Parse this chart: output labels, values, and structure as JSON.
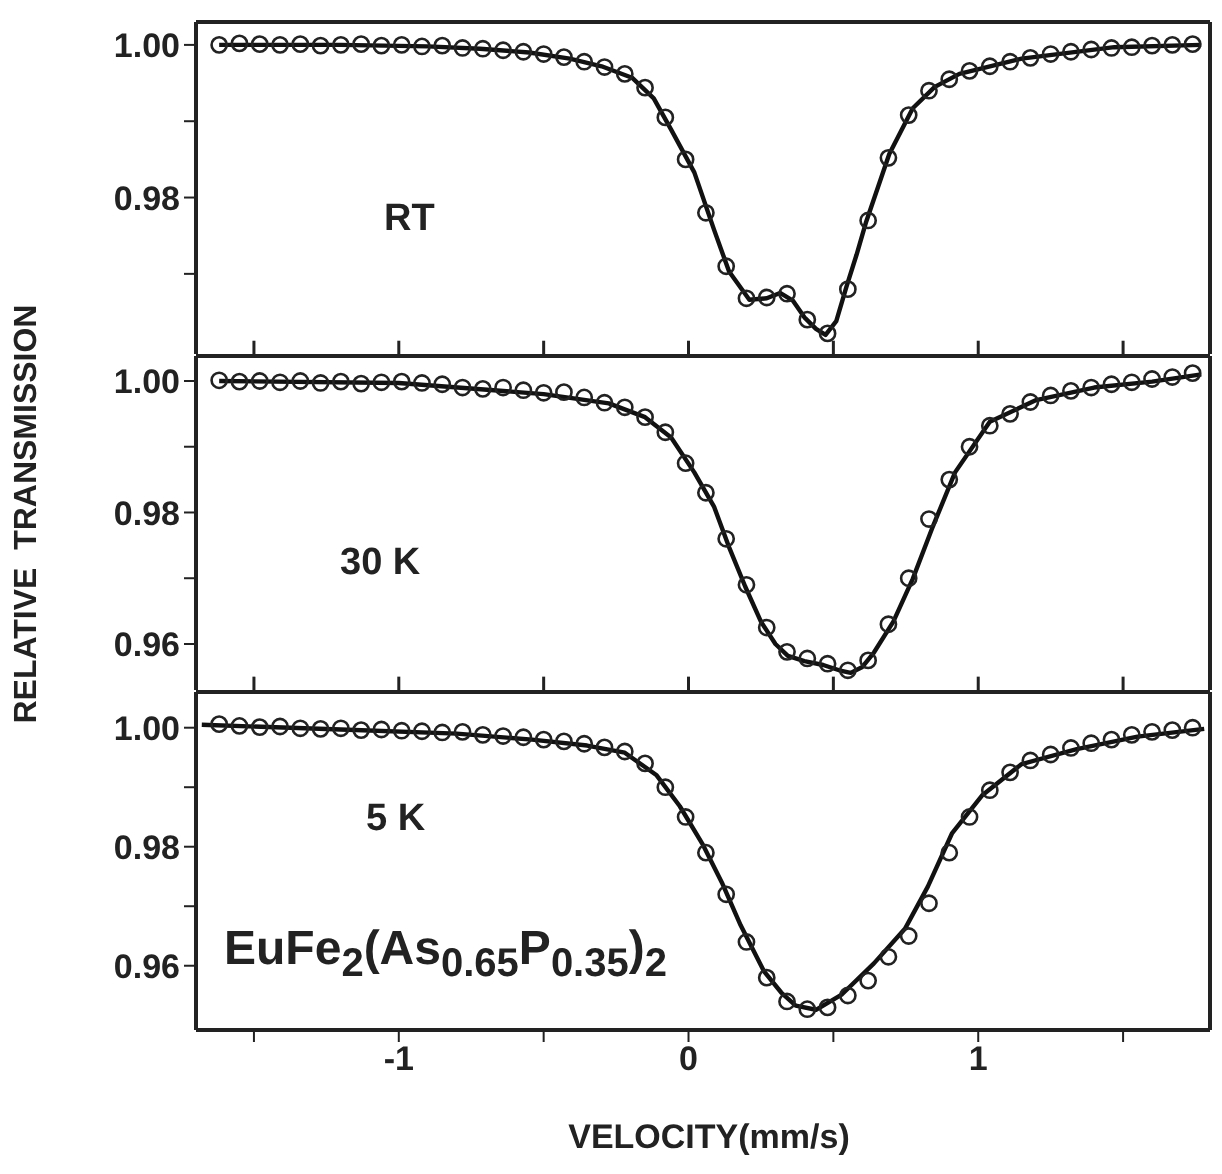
{
  "chart_data": [
    {
      "type": "scatter",
      "xlim": [
        -1.7,
        1.8
      ],
      "xticks": [
        {
          "value": -1.5,
          "label": null
        },
        {
          "value": -1,
          "label": null
        },
        {
          "value": -0.5,
          "label": null
        },
        {
          "value": 0,
          "label": null
        },
        {
          "value": 0.5,
          "label": null
        },
        {
          "value": 1,
          "label": null
        },
        {
          "value": 1.5,
          "label": null
        }
      ],
      "ylim": [
        0.9595,
        1.003
      ],
      "yticks": [
        {
          "value": 0.97,
          "label": null
        },
        {
          "value": 0.98,
          "label": "0.98"
        },
        {
          "value": 0.99,
          "label": null
        },
        {
          "value": 1.0,
          "label": "1.00"
        }
      ],
      "tick_labels": "y",
      "annotations": [
        "RT"
      ],
      "series": [
        {
          "type": "scatter",
          "marker": "circle",
          "color": "#222222",
          "x": [
            -1.62,
            -1.55,
            -1.48,
            -1.41,
            -1.34,
            -1.27,
            -1.2,
            -1.13,
            -1.06,
            -0.99,
            -0.92,
            -0.85,
            -0.78,
            -0.71,
            -0.64,
            -0.57,
            -0.5,
            -0.43,
            -0.36,
            -0.29,
            -0.22,
            -0.15,
            -0.08,
            -0.01,
            0.06,
            0.13,
            0.2,
            0.27,
            0.34,
            0.41,
            0.48,
            0.55,
            0.62,
            0.69,
            0.76,
            0.83,
            0.9,
            0.97,
            1.04,
            1.11,
            1.18,
            1.25,
            1.32,
            1.39,
            1.46,
            1.53,
            1.6,
            1.67,
            1.74
          ],
          "values": [
            1.0,
            1.0002,
            1.0001,
            1.0,
            1.0001,
            0.9999,
            1.0,
            1.0001,
            0.9999,
            1.0,
            0.9998,
            0.9999,
            0.9996,
            0.9995,
            0.9993,
            0.9991,
            0.9988,
            0.9984,
            0.9978,
            0.9971,
            0.9962,
            0.9944,
            0.9905,
            0.985,
            0.978,
            0.971,
            0.9668,
            0.9669,
            0.9674,
            0.964,
            0.9622,
            0.968,
            0.977,
            0.9852,
            0.9908,
            0.994,
            0.9955,
            0.9966,
            0.9972,
            0.9978,
            0.9983,
            0.9988,
            0.9991,
            0.9994,
            0.9996,
            0.9997,
            0.9999,
            1.0,
            1.0001
          ]
        },
        {
          "type": "line",
          "color": "#111111",
          "x": [
            -1.62,
            -1.2,
            -0.9,
            -0.72,
            -0.55,
            -0.41,
            -0.3,
            -0.195,
            -0.12,
            -0.06,
            0.02,
            0.088,
            0.14,
            0.21,
            0.27,
            0.316,
            0.36,
            0.4,
            0.44,
            0.473,
            0.51,
            0.545,
            0.58,
            0.613,
            0.693,
            0.774,
            0.85,
            0.935,
            1.15,
            1.47,
            1.77
          ],
          "values": [
            1.0,
            1.0,
            0.9998,
            0.9995,
            0.999,
            0.9982,
            0.9972,
            0.9957,
            0.993,
            0.9889,
            0.9833,
            0.9758,
            0.9703,
            0.9666,
            0.9668,
            0.9675,
            0.9665,
            0.9643,
            0.9628,
            0.962,
            0.9638,
            0.9683,
            0.9725,
            0.9768,
            0.9857,
            0.9917,
            0.9945,
            0.9962,
            0.9982,
            0.9997,
            1.0
          ]
        }
      ]
    },
    {
      "type": "scatter",
      "ylabel": "RELATIVE  TRANSMISSION",
      "xlim": [
        -1.7,
        1.8
      ],
      "xticks": [
        {
          "value": -1.5,
          "label": null
        },
        {
          "value": -1,
          "label": null
        },
        {
          "value": -0.5,
          "label": null
        },
        {
          "value": 0,
          "label": null
        },
        {
          "value": 0.5,
          "label": null
        },
        {
          "value": 1,
          "label": null
        },
        {
          "value": 1.5,
          "label": null
        }
      ],
      "ylim": [
        0.953,
        1.0038
      ],
      "yticks": [
        {
          "value": 0.96,
          "label": "0.96"
        },
        {
          "value": 0.97,
          "label": null
        },
        {
          "value": 0.98,
          "label": "0.98"
        },
        {
          "value": 0.99,
          "label": null
        },
        {
          "value": 1.0,
          "label": "1.00"
        }
      ],
      "tick_labels": "y",
      "annotations": [
        "30 K"
      ],
      "series": [
        {
          "type": "scatter",
          "marker": "circle",
          "color": "#222222",
          "x": [
            -1.62,
            -1.55,
            -1.48,
            -1.41,
            -1.34,
            -1.27,
            -1.2,
            -1.13,
            -1.06,
            -0.99,
            -0.92,
            -0.85,
            -0.78,
            -0.71,
            -0.64,
            -0.57,
            -0.5,
            -0.43,
            -0.36,
            -0.29,
            -0.22,
            -0.15,
            -0.08,
            -0.01,
            0.06,
            0.13,
            0.2,
            0.27,
            0.34,
            0.41,
            0.48,
            0.55,
            0.62,
            0.69,
            0.76,
            0.83,
            0.9,
            0.97,
            1.04,
            1.11,
            1.18,
            1.25,
            1.32,
            1.39,
            1.46,
            1.53,
            1.6,
            1.67,
            1.74
          ],
          "values": [
            1.0001,
            0.9999,
            1.0,
            0.9998,
            1.0,
            0.9997,
            0.9999,
            0.9996,
            0.9998,
            0.9999,
            0.9997,
            0.9995,
            0.999,
            0.9988,
            0.999,
            0.9986,
            0.9982,
            0.9983,
            0.9975,
            0.9967,
            0.996,
            0.9945,
            0.9922,
            0.9875,
            0.983,
            0.976,
            0.969,
            0.9625,
            0.9588,
            0.9578,
            0.957,
            0.956,
            0.9575,
            0.963,
            0.97,
            0.979,
            0.985,
            0.99,
            0.9932,
            0.995,
            0.9968,
            0.9978,
            0.9985,
            0.999,
            0.9995,
            0.9998,
            1.0003,
            1.0006,
            1.0012
          ]
        },
        {
          "type": "line",
          "color": "#111111",
          "x": [
            -1.62,
            -1.0,
            -0.706,
            -0.5,
            -0.275,
            -0.15,
            -0.06,
            0.02,
            0.088,
            0.142,
            0.196,
            0.25,
            0.3,
            0.343,
            0.4,
            0.465,
            0.52,
            0.56,
            0.6,
            0.64,
            0.707,
            0.774,
            0.84,
            0.92,
            1.04,
            1.2,
            1.4,
            1.6,
            1.77
          ],
          "values": [
            1.0,
            0.9997,
            0.9987,
            0.998,
            0.9966,
            0.9945,
            0.9914,
            0.9861,
            0.9809,
            0.9745,
            0.9687,
            0.9634,
            0.96,
            0.9582,
            0.9574,
            0.9568,
            0.956,
            0.9556,
            0.9565,
            0.9587,
            0.9634,
            0.9699,
            0.9775,
            0.9861,
            0.9938,
            0.9971,
            0.999,
            0.9999,
            1.001
          ]
        }
      ]
    },
    {
      "type": "scatter",
      "xlabel": "VELOCITY(mm/s)",
      "xlim": [
        -1.7,
        1.8
      ],
      "xticks": [
        {
          "value": -1.5,
          "label": null
        },
        -1,
        {
          "value": -0.5,
          "label": null
        },
        0,
        {
          "value": 0.5,
          "label": null
        },
        1,
        {
          "value": 1.5,
          "label": null
        }
      ],
      "ylim": [
        0.9492,
        1.006
      ],
      "yticks": [
        {
          "value": 0.96,
          "label": "0.96"
        },
        {
          "value": 0.97,
          "label": null
        },
        {
          "value": 0.98,
          "label": "0.98"
        },
        {
          "value": 0.99,
          "label": null
        },
        {
          "value": 1.0,
          "label": "1.00"
        }
      ],
      "annotations": [
        "5 K",
        "EuFe$_{2}$(As$_{0.65}$P$_{0.35}$)$_{2}$"
      ],
      "series": [
        {
          "type": "scatter",
          "marker": "circle",
          "color": "#222222",
          "x": [
            -1.62,
            -1.55,
            -1.48,
            -1.41,
            -1.34,
            -1.27,
            -1.2,
            -1.13,
            -1.06,
            -0.99,
            -0.92,
            -0.85,
            -0.78,
            -0.71,
            -0.64,
            -0.57,
            -0.5,
            -0.43,
            -0.36,
            -0.29,
            -0.22,
            -0.15,
            -0.08,
            -0.01,
            0.06,
            0.13,
            0.2,
            0.27,
            0.34,
            0.41,
            0.48,
            0.55,
            0.62,
            0.69,
            0.76,
            0.83,
            0.9,
            0.97,
            1.04,
            1.11,
            1.18,
            1.25,
            1.32,
            1.39,
            1.46,
            1.53,
            1.6,
            1.67,
            1.74
          ],
          "values": [
            1.0006,
            1.0003,
            1.0001,
            1.0002,
            0.9999,
            0.9998,
            0.9999,
            0.9996,
            0.9997,
            0.9995,
            0.9994,
            0.9992,
            0.9993,
            0.9988,
            0.9986,
            0.9984,
            0.998,
            0.9977,
            0.9973,
            0.9967,
            0.996,
            0.994,
            0.99,
            0.985,
            0.979,
            0.972,
            0.964,
            0.958,
            0.954,
            0.9527,
            0.953,
            0.955,
            0.9575,
            0.9615,
            0.965,
            0.9705,
            0.979,
            0.985,
            0.9895,
            0.9925,
            0.9945,
            0.9955,
            0.9966,
            0.9974,
            0.998,
            0.9988,
            0.9993,
            0.9996,
            1.0
          ]
        },
        {
          "type": "line",
          "color": "#111111",
          "x": [
            -1.68,
            -1.2,
            -0.8,
            -0.54,
            -0.35,
            -0.22,
            -0.11,
            -0.03,
            0.05,
            0.115,
            0.18,
            0.26,
            0.32,
            0.37,
            0.44,
            0.53,
            0.64,
            0.747,
            0.826,
            0.91,
            1.015,
            1.15,
            1.34,
            1.55,
            1.78
          ],
          "values": [
            1.0005,
            0.9997,
            0.999,
            0.998,
            0.997,
            0.9958,
            0.992,
            0.9868,
            0.9803,
            0.974,
            0.9668,
            0.9591,
            0.9555,
            0.9533,
            0.9526,
            0.9552,
            0.9604,
            0.9662,
            0.9733,
            0.9823,
            0.9887,
            0.9939,
            0.9964,
            0.9985,
            0.9998
          ]
        }
      ]
    }
  ]
}
